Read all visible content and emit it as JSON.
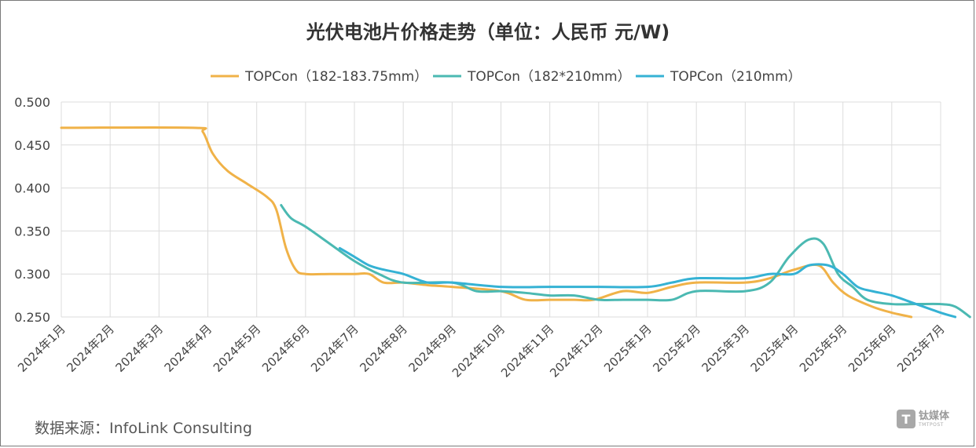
{
  "source_text": "数据来源：InfoLink Consulting",
  "watermark": {
    "cn": "钛媒体",
    "en": "TMTPOST",
    "logo_letter": "T"
  },
  "chart_data": {
    "type": "line",
    "title": "光伏电池片价格走势（单位：人民币 元/W)",
    "xlabel": "",
    "ylabel": "",
    "ylim": [
      0.25,
      0.5
    ],
    "yticks": [
      0.25,
      0.3,
      0.35,
      0.4,
      0.45,
      0.5
    ],
    "ytick_labels": [
      "0.250",
      "0.300",
      "0.350",
      "0.400",
      "0.450",
      "0.500"
    ],
    "grid": true,
    "legend_position": "top",
    "x_categories": [
      "2024年1月",
      "2024年2月",
      "2024年3月",
      "2024年4月",
      "2024年5月",
      "2024年6月",
      "2024年7月",
      "2024年8月",
      "2024年9月",
      "2024年10月",
      "2024年11月",
      "2024年12月",
      "2025年1月",
      "2025年2月",
      "2025年3月",
      "2025年4月",
      "2025年5月",
      "2025年6月",
      "2025年7月"
    ],
    "series": [
      {
        "name": "TOPCon（182-183.75mm）",
        "color": "#f0b248",
        "points": [
          [
            0.0,
            0.47
          ],
          [
            2.7,
            0.47
          ],
          [
            2.9,
            0.465
          ],
          [
            3.1,
            0.44
          ],
          [
            3.4,
            0.42
          ],
          [
            3.8,
            0.405
          ],
          [
            4.2,
            0.39
          ],
          [
            4.4,
            0.375
          ],
          [
            4.6,
            0.33
          ],
          [
            4.8,
            0.305
          ],
          [
            5.0,
            0.3
          ],
          [
            5.5,
            0.3
          ],
          [
            6.0,
            0.3
          ],
          [
            6.3,
            0.3
          ],
          [
            6.6,
            0.29
          ],
          [
            7.0,
            0.29
          ],
          [
            7.5,
            0.287
          ],
          [
            8.0,
            0.285
          ],
          [
            9.0,
            0.28
          ],
          [
            9.5,
            0.27
          ],
          [
            10.0,
            0.27
          ],
          [
            10.5,
            0.27
          ],
          [
            10.9,
            0.27
          ],
          [
            11.5,
            0.28
          ],
          [
            12.0,
            0.278
          ],
          [
            12.5,
            0.285
          ],
          [
            13.0,
            0.29
          ],
          [
            14.0,
            0.29
          ],
          [
            14.5,
            0.295
          ],
          [
            15.0,
            0.305
          ],
          [
            15.5,
            0.31
          ],
          [
            15.8,
            0.29
          ],
          [
            16.1,
            0.275
          ],
          [
            16.6,
            0.262
          ],
          [
            17.0,
            0.255
          ],
          [
            17.4,
            0.25
          ]
        ]
      },
      {
        "name": "TOPCon（182*210mm）",
        "color": "#4bb9b2",
        "points": [
          [
            4.5,
            0.38
          ],
          [
            4.7,
            0.365
          ],
          [
            5.0,
            0.355
          ],
          [
            5.5,
            0.335
          ],
          [
            6.0,
            0.315
          ],
          [
            6.5,
            0.3
          ],
          [
            7.0,
            0.29
          ],
          [
            8.0,
            0.29
          ],
          [
            8.5,
            0.28
          ],
          [
            9.0,
            0.28
          ],
          [
            9.5,
            0.278
          ],
          [
            10.0,
            0.275
          ],
          [
            10.5,
            0.275
          ],
          [
            11.0,
            0.27
          ],
          [
            11.5,
            0.27
          ],
          [
            12.0,
            0.27
          ],
          [
            12.5,
            0.27
          ],
          [
            13.0,
            0.28
          ],
          [
            14.0,
            0.28
          ],
          [
            14.5,
            0.29
          ],
          [
            14.9,
            0.32
          ],
          [
            15.3,
            0.34
          ],
          [
            15.6,
            0.335
          ],
          [
            15.9,
            0.3
          ],
          [
            16.2,
            0.285
          ],
          [
            16.5,
            0.27
          ],
          [
            17.0,
            0.265
          ],
          [
            17.5,
            0.265
          ],
          [
            18.0,
            0.265
          ],
          [
            18.3,
            0.262
          ],
          [
            18.6,
            0.25
          ]
        ]
      },
      {
        "name": "TOPCon（210mm）",
        "color": "#35b2d4",
        "points": [
          [
            5.7,
            0.33
          ],
          [
            6.0,
            0.32
          ],
          [
            6.3,
            0.31
          ],
          [
            6.6,
            0.305
          ],
          [
            7.0,
            0.3
          ],
          [
            7.5,
            0.29
          ],
          [
            8.0,
            0.29
          ],
          [
            9.0,
            0.285
          ],
          [
            10.0,
            0.285
          ],
          [
            11.0,
            0.285
          ],
          [
            12.0,
            0.285
          ],
          [
            12.5,
            0.29
          ],
          [
            13.0,
            0.295
          ],
          [
            14.0,
            0.295
          ],
          [
            14.5,
            0.3
          ],
          [
            15.0,
            0.3
          ],
          [
            15.3,
            0.31
          ],
          [
            15.7,
            0.31
          ],
          [
            16.0,
            0.3
          ],
          [
            16.3,
            0.285
          ],
          [
            16.6,
            0.28
          ],
          [
            17.0,
            0.275
          ],
          [
            17.5,
            0.265
          ],
          [
            18.0,
            0.255
          ],
          [
            18.3,
            0.25
          ]
        ]
      }
    ]
  }
}
